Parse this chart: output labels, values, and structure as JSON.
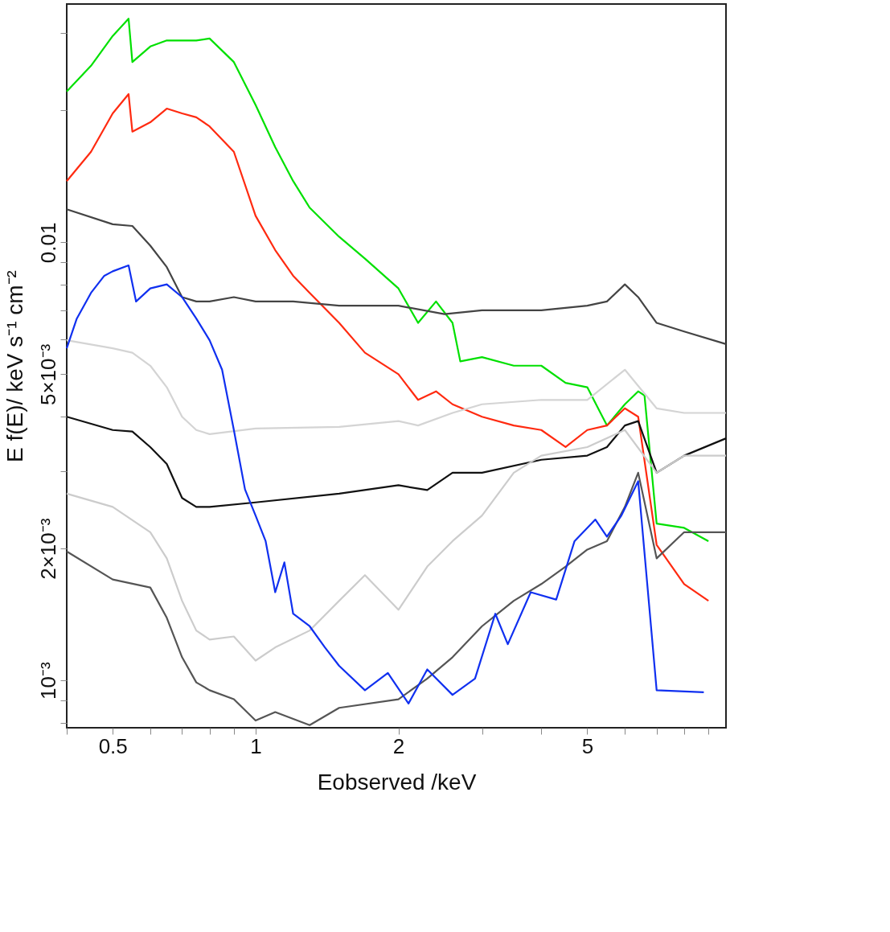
{
  "chart_data": {
    "type": "line",
    "xlabel": "Eobserved /keV",
    "ylabel": "E f(E)/ keV s⁻¹ cm⁻²",
    "log": "xy",
    "grid": false,
    "legend": false,
    "line_style": "solid",
    "marker": "none",
    "xlim": [
      0.4,
      9.8
    ],
    "ylim": [
      0.00078,
      0.035
    ],
    "xticks": [
      {
        "value": 0.4,
        "label": null
      },
      0.5,
      {
        "value": 0.6,
        "label": null
      },
      {
        "value": 0.7,
        "label": null
      },
      {
        "value": 0.8,
        "label": null
      },
      {
        "value": 0.9,
        "label": null
      },
      1,
      2,
      {
        "value": 3,
        "label": null
      },
      {
        "value": 4,
        "label": null
      },
      5,
      {
        "value": 6,
        "label": null
      },
      {
        "value": 7,
        "label": null
      },
      {
        "value": 8,
        "label": null
      },
      {
        "value": 9,
        "label": null
      }
    ],
    "yticks": [
      {
        "value": 0.0008,
        "label": null
      },
      {
        "value": 0.0009,
        "label": null
      },
      {
        "value": 0.001,
        "label": "10⁻³"
      },
      {
        "value": 0.002,
        "label": "2×10⁻³"
      },
      {
        "value": 0.003,
        "label": null
      },
      {
        "value": 0.004,
        "label": null
      },
      {
        "value": 0.005,
        "label": "5×10⁻³"
      },
      {
        "value": 0.006,
        "label": null
      },
      {
        "value": 0.007,
        "label": null
      },
      {
        "value": 0.008,
        "label": null
      },
      {
        "value": 0.009,
        "label": null
      },
      {
        "value": 0.01,
        "label": "0.01"
      },
      {
        "value": 0.02,
        "label": null
      },
      {
        "value": 0.03,
        "label": null
      }
    ],
    "series": [
      {
        "color": "#00e000",
        "x": [
          0.4,
          0.45,
          0.5,
          0.54,
          0.55,
          0.6,
          0.65,
          0.7,
          0.75,
          0.8,
          0.9,
          1.0,
          1.1,
          1.2,
          1.3,
          1.5,
          1.7,
          2.0,
          2.2,
          2.4,
          2.6,
          2.7,
          3,
          3.5,
          4,
          4.5,
          5,
          5.5,
          6,
          6.4,
          6.6,
          7,
          8,
          9
        ],
        "values": [
          0.0221,
          0.0253,
          0.0296,
          0.0324,
          0.0258,
          0.028,
          0.0289,
          0.0289,
          0.0289,
          0.0292,
          0.0258,
          0.0206,
          0.0165,
          0.0138,
          0.012,
          0.0103,
          0.00918,
          0.00785,
          0.00655,
          0.00733,
          0.00655,
          0.00535,
          0.00547,
          0.00523,
          0.00523,
          0.00478,
          0.00467,
          0.00382,
          0.00427,
          0.00457,
          0.00447,
          0.00228,
          0.00223,
          0.00208
        ]
      },
      {
        "color": "#ff2a10",
        "x": [
          0.4,
          0.45,
          0.5,
          0.54,
          0.55,
          0.6,
          0.65,
          0.7,
          0.75,
          0.8,
          0.9,
          1.0,
          1.1,
          1.2,
          1.3,
          1.5,
          1.7,
          2.0,
          2.2,
          2.4,
          2.6,
          3,
          3.5,
          4,
          4.5,
          5,
          5.5,
          6,
          6.4,
          7,
          8,
          9
        ],
        "values": [
          0.0138,
          0.0161,
          0.0197,
          0.0218,
          0.0179,
          0.0188,
          0.0202,
          0.0197,
          0.0193,
          0.0184,
          0.0161,
          0.0115,
          0.0096,
          0.00839,
          0.00767,
          0.00655,
          0.0056,
          0.005,
          0.00437,
          0.00457,
          0.00427,
          0.004,
          0.00382,
          0.00373,
          0.00341,
          0.00373,
          0.00382,
          0.00418,
          0.004,
          0.00204,
          0.00166,
          0.00152
        ]
      },
      {
        "color": "#444444",
        "x": [
          0.4,
          0.5,
          0.55,
          0.6,
          0.65,
          0.7,
          0.75,
          0.8,
          0.9,
          1.0,
          1.2,
          1.5,
          2.0,
          2.5,
          3,
          4,
          5,
          5.5,
          6,
          6.4,
          7,
          8,
          9.8
        ],
        "values": [
          0.0119,
          0.011,
          0.0109,
          0.00983,
          0.00878,
          0.0075,
          0.00733,
          0.00733,
          0.0075,
          0.00733,
          0.00733,
          0.00717,
          0.00717,
          0.00686,
          0.007,
          0.007,
          0.00717,
          0.00733,
          0.00802,
          0.0075,
          0.00655,
          0.00626,
          0.00586
        ]
      },
      {
        "color": "#d4d4d4",
        "x": [
          0.4,
          0.5,
          0.55,
          0.6,
          0.65,
          0.7,
          0.75,
          0.8,
          1.0,
          1.5,
          2.0,
          2.2,
          2.6,
          3,
          4,
          5,
          6,
          7,
          8,
          9.8
        ],
        "values": [
          0.00598,
          0.00573,
          0.0056,
          0.00523,
          0.00467,
          0.004,
          0.00373,
          0.00365,
          0.00376,
          0.00379,
          0.00391,
          0.00382,
          0.00408,
          0.00427,
          0.00437,
          0.00437,
          0.00512,
          0.00418,
          0.00408,
          0.00408
        ]
      },
      {
        "color": "#111111",
        "x": [
          0.4,
          0.5,
          0.55,
          0.6,
          0.65,
          0.7,
          0.75,
          0.8,
          1.0,
          1.5,
          2.0,
          2.3,
          2.6,
          3,
          4,
          5,
          5.5,
          6,
          6.4,
          7,
          8,
          9.8
        ],
        "values": [
          0.004,
          0.00373,
          0.0037,
          0.00341,
          0.00312,
          0.00261,
          0.00249,
          0.00249,
          0.00255,
          0.00267,
          0.00279,
          0.00272,
          0.00298,
          0.00298,
          0.00319,
          0.00326,
          0.00341,
          0.00382,
          0.00391,
          0.00298,
          0.00326,
          0.00357
        ]
      },
      {
        "color": "#cccccc",
        "x": [
          0.4,
          0.5,
          0.6,
          0.65,
          0.7,
          0.75,
          0.8,
          0.9,
          1.0,
          1.1,
          1.3,
          1.5,
          1.7,
          2.0,
          2.3,
          2.6,
          3,
          3.5,
          4,
          5,
          6,
          7,
          8,
          9.8
        ],
        "values": [
          0.00267,
          0.00249,
          0.00218,
          0.0019,
          0.00152,
          0.0013,
          0.00124,
          0.00126,
          0.00111,
          0.00119,
          0.0013,
          0.00152,
          0.00174,
          0.00145,
          0.00182,
          0.00208,
          0.00238,
          0.00298,
          0.00326,
          0.00341,
          0.00373,
          0.00298,
          0.00326,
          0.00326
        ]
      },
      {
        "color": "#555555",
        "x": [
          0.4,
          0.5,
          0.6,
          0.65,
          0.7,
          0.75,
          0.8,
          0.9,
          1.0,
          1.1,
          1.3,
          1.5,
          2.0,
          2.3,
          2.6,
          3,
          3.5,
          4,
          4.5,
          5,
          5.5,
          6,
          6.4,
          7,
          8,
          9.8
        ],
        "values": [
          0.00197,
          0.0017,
          0.00163,
          0.00139,
          0.00113,
          0.00099,
          0.00095,
          0.000906,
          0.00081,
          0.000847,
          0.000791,
          0.000866,
          0.000906,
          0.00101,
          0.00113,
          0.00133,
          0.00152,
          0.00166,
          0.00182,
          0.00199,
          0.00208,
          0.00249,
          0.00298,
          0.0019,
          0.00218,
          0.00218
        ]
      },
      {
        "color": "#1030f0",
        "x": [
          0.4,
          0.42,
          0.45,
          0.48,
          0.5,
          0.54,
          0.56,
          0.6,
          0.65,
          0.7,
          0.75,
          0.8,
          0.85,
          0.9,
          0.95,
          1.0,
          1.05,
          1.1,
          1.15,
          1.2,
          1.3,
          1.4,
          1.5,
          1.7,
          1.9,
          2.1,
          2.3,
          2.6,
          2.9,
          3.2,
          3.4,
          3.8,
          4.3,
          4.7,
          5.2,
          5.5,
          5.9,
          6.4,
          7,
          8.8
        ],
        "values": [
          0.00573,
          0.0067,
          0.00767,
          0.00839,
          0.00859,
          0.00886,
          0.00733,
          0.00785,
          0.00802,
          0.0075,
          0.0067,
          0.00598,
          0.00512,
          0.00373,
          0.00273,
          0.00238,
          0.00208,
          0.00159,
          0.00186,
          0.00142,
          0.00133,
          0.00119,
          0.00108,
          0.00095,
          0.00104,
          0.000886,
          0.00106,
          0.000927,
          0.00101,
          0.00142,
          0.00121,
          0.00159,
          0.00153,
          0.00208,
          0.00233,
          0.00213,
          0.00238,
          0.00285,
          0.00095,
          0.00094
        ]
      }
    ]
  }
}
